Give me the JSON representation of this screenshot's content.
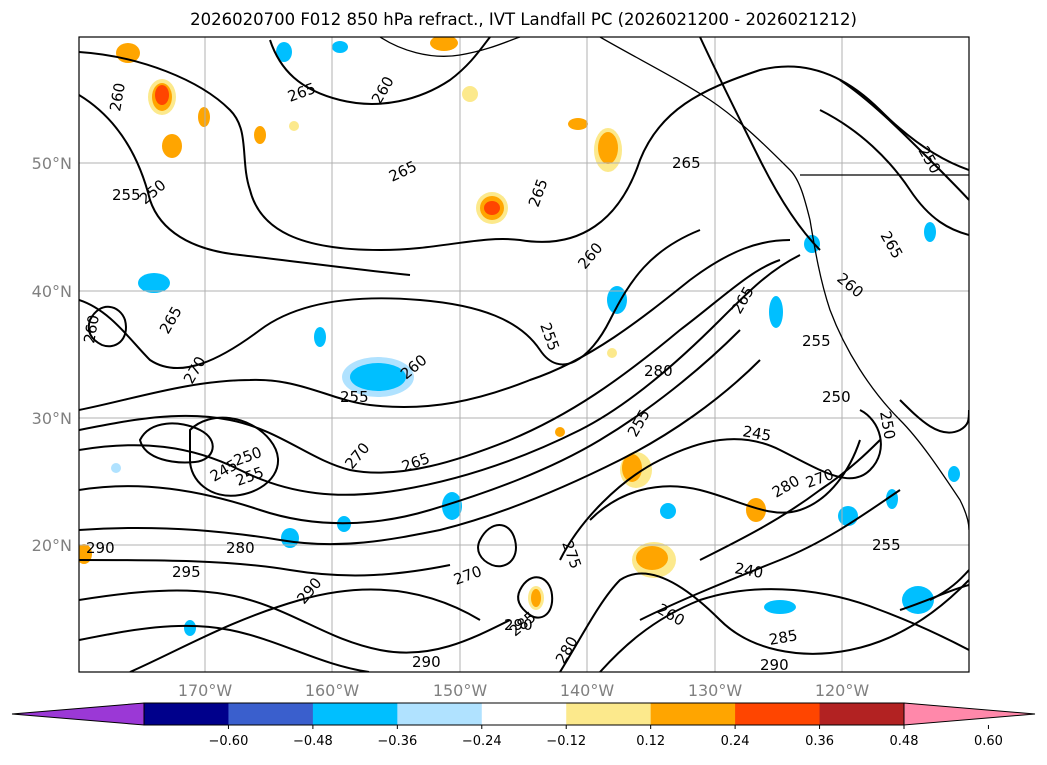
{
  "title": "2026020700 F012 850 hPa refract., IVT Landfall PC (2026021200 - 2026021212)",
  "lat_labels": [
    "50°N",
    "40°N",
    "30°N",
    "20°N"
  ],
  "lon_labels": [
    "170°W",
    "160°W",
    "150°W",
    "140°W",
    "130°W",
    "120°W"
  ],
  "contour_labels": [
    "260",
    "265",
    "260",
    "255",
    "250",
    "265",
    "265",
    "260",
    "255",
    "265",
    "250",
    "265",
    "270",
    "255",
    "260",
    "250",
    "245",
    "255",
    "270",
    "265",
    "280",
    "290",
    "295",
    "280",
    "290",
    "270",
    "285",
    "290",
    "275",
    "260",
    "255",
    "250",
    "245",
    "240",
    "265",
    "280",
    "270",
    "260",
    "265",
    "255",
    "250",
    "255",
    "260",
    "290",
    "285",
    "290",
    "280"
  ],
  "colorbar": {
    "ticks": [
      "−0.60",
      "−0.48",
      "−0.36",
      "−0.24",
      "−0.12",
      "0.12",
      "0.24",
      "0.36",
      "0.48",
      "0.60"
    ],
    "colors": [
      "#9b38d6",
      "#00008b",
      "#3a5fcd",
      "#00bfff",
      "#b0e2ff",
      "#ffffff",
      "#fce98c",
      "#ffa500",
      "#ff4500",
      "#b22222",
      "#ff88aa"
    ]
  }
}
